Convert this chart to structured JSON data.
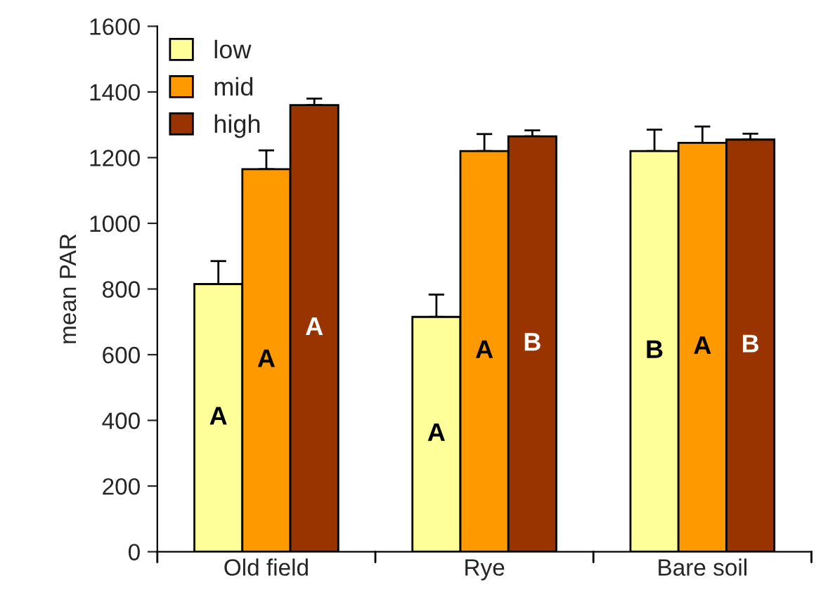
{
  "chart_data": {
    "type": "bar",
    "ylabel": "mean PAR",
    "categories": [
      "Old field",
      "Rye",
      "Bare soil"
    ],
    "series": [
      {
        "name": "low",
        "color": "#ffff99",
        "values": [
          815,
          715,
          1220
        ],
        "errors": [
          [
            815,
            885
          ],
          [
            715,
            783
          ],
          [
            1220,
            1285
          ]
        ],
        "value_labels": [
          "A",
          "A",
          "B"
        ]
      },
      {
        "name": "mid",
        "color": "#ff9900",
        "values": [
          1165,
          1220,
          1245
        ],
        "errors": [
          [
            1165,
            1222
          ],
          [
            1220,
            1272
          ],
          [
            1245,
            1295
          ]
        ],
        "value_labels": [
          "A",
          "A",
          "A"
        ]
      },
      {
        "name": "high",
        "color": "#993300",
        "values": [
          1360,
          1265,
          1255
        ],
        "errors": [
          [
            1360,
            1380
          ],
          [
            1265,
            1283
          ],
          [
            1255,
            1273
          ]
        ],
        "value_labels": [
          "A",
          "B",
          "B"
        ]
      }
    ],
    "ylim": [
      0,
      1600
    ],
    "yticks": [
      0,
      200,
      400,
      600,
      800,
      1000,
      1200,
      1400,
      1600
    ],
    "grid": false,
    "legend": "top left"
  }
}
